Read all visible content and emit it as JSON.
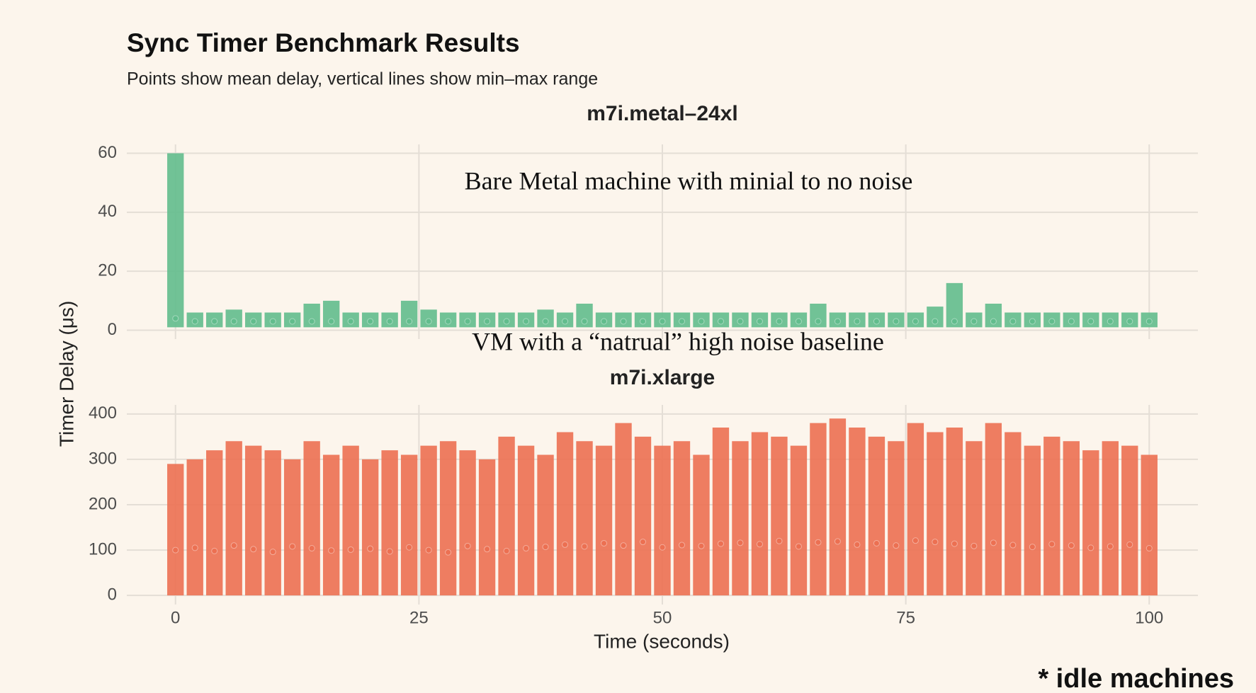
{
  "title": "Sync Timer Benchmark Results",
  "subtitle": "Points show mean delay, vertical lines show min–max range",
  "x_label": "Time (seconds)",
  "y_label": "Timer Delay (μs)",
  "note": "* idle machines",
  "chart_data": [
    {
      "type": "errorbar",
      "title": "m7i.metal–24xl",
      "annotation": "Bare Metal machine with minial to no noise",
      "color": "#62bd8d",
      "x": [
        0,
        2,
        4,
        6,
        8,
        10,
        12,
        14,
        16,
        18,
        20,
        22,
        24,
        26,
        28,
        30,
        32,
        34,
        36,
        38,
        40,
        42,
        44,
        46,
        48,
        50,
        52,
        54,
        56,
        58,
        60,
        62,
        64,
        66,
        68,
        70,
        72,
        74,
        76,
        78,
        80,
        82,
        84,
        86,
        88,
        90,
        92,
        94,
        96,
        98,
        100
      ],
      "values": [
        4,
        3,
        3,
        3,
        3,
        3,
        3,
        3,
        3,
        3,
        3,
        3,
        3,
        3,
        3,
        3,
        3,
        3,
        3,
        3,
        3,
        3,
        3,
        3,
        3,
        3,
        3,
        3,
        3,
        3,
        3,
        3,
        3,
        3,
        3,
        3,
        3,
        3,
        3,
        3,
        3,
        3,
        3,
        3,
        3,
        3,
        3,
        3,
        3,
        3,
        3
      ],
      "min": [
        1,
        1,
        1,
        1,
        1,
        1,
        1,
        1,
        1,
        1,
        1,
        1,
        1,
        1,
        1,
        1,
        1,
        1,
        1,
        1,
        1,
        1,
        1,
        1,
        1,
        1,
        1,
        1,
        1,
        1,
        1,
        1,
        1,
        1,
        1,
        1,
        1,
        1,
        1,
        1,
        1,
        1,
        1,
        1,
        1,
        1,
        1,
        1,
        1,
        1,
        1
      ],
      "max": [
        60,
        6,
        6,
        7,
        6,
        6,
        6,
        9,
        10,
        6,
        6,
        6,
        10,
        7,
        6,
        6,
        6,
        6,
        6,
        7,
        6,
        9,
        6,
        6,
        6,
        6,
        6,
        6,
        6,
        6,
        6,
        6,
        6,
        9,
        6,
        6,
        6,
        6,
        6,
        8,
        16,
        6,
        9,
        6,
        6,
        6,
        6,
        6,
        6,
        6,
        6
      ],
      "xlim": [
        -5,
        105
      ],
      "xticks": [
        0,
        25,
        50,
        75,
        100
      ],
      "ylim": [
        -3,
        63
      ],
      "yticks": [
        0,
        20,
        40,
        60
      ],
      "grid": true
    },
    {
      "type": "errorbar",
      "title": "m7i.xlarge",
      "annotation": "VM with a “natrual” high noise baseline",
      "color": "#ec7052",
      "x": [
        0,
        2,
        4,
        6,
        8,
        10,
        12,
        14,
        16,
        18,
        20,
        22,
        24,
        26,
        28,
        30,
        32,
        34,
        36,
        38,
        40,
        42,
        44,
        46,
        48,
        50,
        52,
        54,
        56,
        58,
        60,
        62,
        64,
        66,
        68,
        70,
        72,
        74,
        76,
        78,
        80,
        82,
        84,
        86,
        88,
        90,
        92,
        94,
        96,
        98,
        100
      ],
      "values": [
        100,
        105,
        98,
        110,
        102,
        96,
        108,
        104,
        99,
        101,
        103,
        97,
        106,
        100,
        95,
        109,
        102,
        98,
        104,
        107,
        112,
        108,
        115,
        110,
        118,
        106,
        111,
        109,
        114,
        116,
        113,
        120,
        108,
        117,
        119,
        112,
        115,
        110,
        121,
        118,
        114,
        109,
        116,
        111,
        107,
        113,
        110,
        105,
        108,
        112,
        104
      ],
      "min": [
        0,
        0,
        0,
        0,
        0,
        0,
        0,
        0,
        0,
        0,
        0,
        0,
        0,
        0,
        0,
        0,
        0,
        0,
        0,
        0,
        0,
        0,
        0,
        0,
        0,
        0,
        0,
        0,
        0,
        0,
        0,
        0,
        0,
        0,
        0,
        0,
        0,
        0,
        0,
        0,
        0,
        0,
        0,
        0,
        0,
        0,
        0,
        0,
        0,
        0,
        0
      ],
      "max": [
        290,
        300,
        320,
        340,
        330,
        320,
        300,
        340,
        310,
        330,
        300,
        320,
        310,
        330,
        340,
        320,
        300,
        350,
        330,
        310,
        360,
        340,
        330,
        380,
        350,
        330,
        340,
        310,
        370,
        340,
        360,
        350,
        330,
        380,
        390,
        370,
        350,
        340,
        380,
        360,
        370,
        340,
        380,
        360,
        330,
        350,
        340,
        320,
        340,
        330,
        310
      ],
      "xlim": [
        -5,
        105
      ],
      "xticks": [
        0,
        25,
        50,
        75,
        100
      ],
      "ylim": [
        -20,
        420
      ],
      "yticks": [
        0,
        100,
        200,
        300,
        400
      ],
      "grid": true
    }
  ]
}
